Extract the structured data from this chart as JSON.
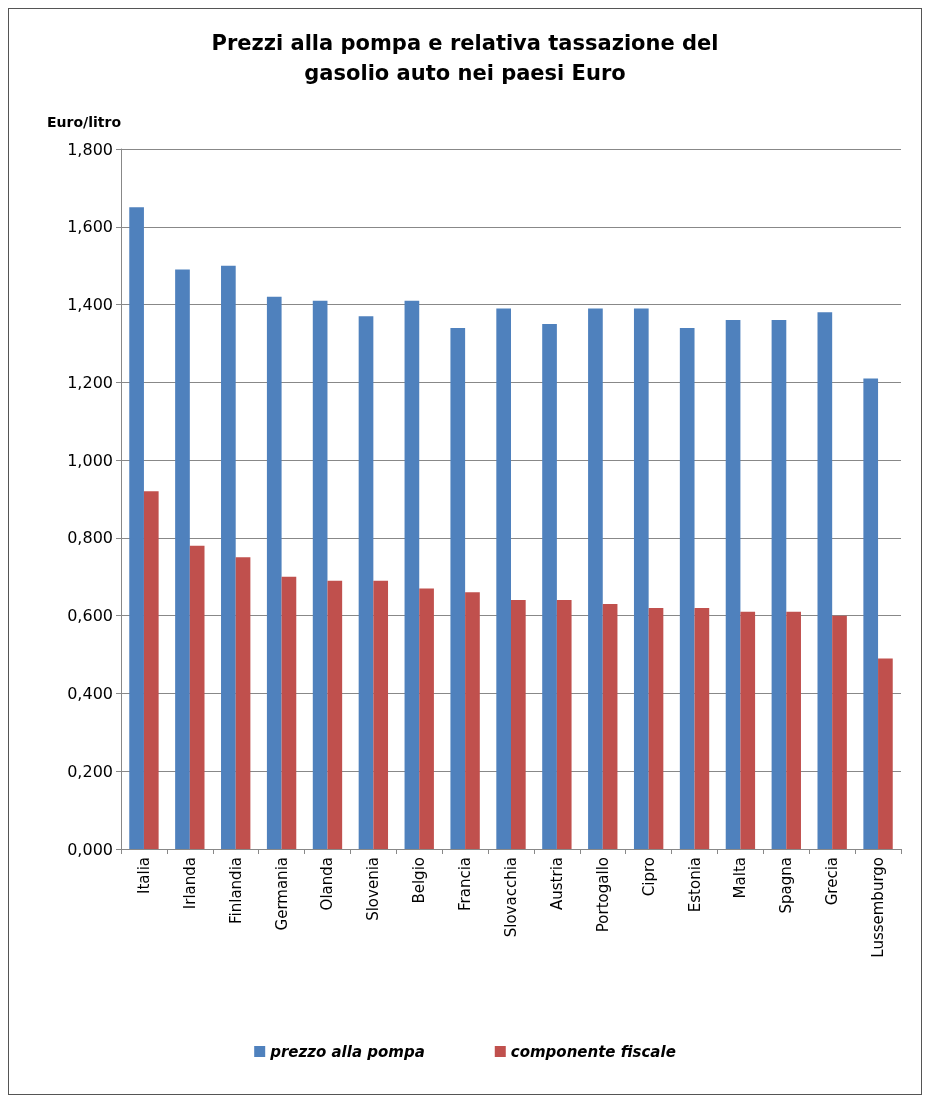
{
  "chart_data": {
    "type": "bar",
    "title": "Prezzi alla pompa e relativa tassazione del\ngasolio auto nei paesi Euro",
    "ylabel": "Euro/litro",
    "categories": [
      "Italia",
      "Irlanda",
      "Finlandia",
      "Germania",
      "Olanda",
      "Slovenia",
      "Belgio",
      "Francia",
      "Slovacchia",
      "Austria",
      "Portogallo",
      "Cipro",
      "Estonia",
      "Malta",
      "Spagna",
      "Grecia",
      "Lussemburgo"
    ],
    "series": [
      {
        "name": "prezzo alla pompa",
        "color": "#4f81bd",
        "values": [
          1.65,
          1.49,
          1.5,
          1.42,
          1.41,
          1.37,
          1.41,
          1.34,
          1.39,
          1.35,
          1.39,
          1.39,
          1.34,
          1.36,
          1.36,
          1.38,
          1.21
        ]
      },
      {
        "name": "componente fiscale",
        "color": "#c0504d",
        "values": [
          0.92,
          0.78,
          0.75,
          0.7,
          0.69,
          0.69,
          0.67,
          0.66,
          0.64,
          0.64,
          0.63,
          0.62,
          0.62,
          0.61,
          0.61,
          0.6,
          0.49
        ]
      }
    ],
    "ylim": [
      0,
      1.8
    ],
    "yticks": [
      {
        "value": 0,
        "label": "0,000"
      },
      {
        "value": 0.2,
        "label": "0,200"
      },
      {
        "value": 0.4,
        "label": "0,400"
      },
      {
        "value": 0.6,
        "label": "0,600"
      },
      {
        "value": 0.8,
        "label": "0,800"
      },
      {
        "value": 1,
        "label": "1,000"
      },
      {
        "value": 1.2,
        "label": "1,200"
      },
      {
        "value": 1.4,
        "label": "1,400"
      },
      {
        "value": 1.6,
        "label": "1,600"
      },
      {
        "value": 1.8,
        "label": "1,800"
      }
    ],
    "grid": true,
    "legend": "bottom"
  }
}
